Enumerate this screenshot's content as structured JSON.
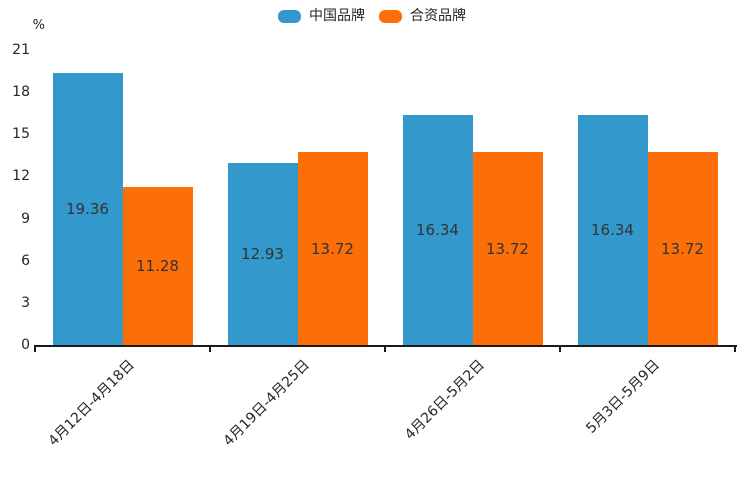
{
  "chart_data": {
    "type": "bar",
    "title": "",
    "xlabel": "",
    "ylabel": "%",
    "ylim": [
      0,
      21
    ],
    "yticks": [
      0,
      3,
      6,
      9,
      12,
      15,
      18,
      21
    ],
    "grid": false,
    "legend_position": "top-center",
    "value_labels": "inside-center",
    "categories": [
      "4月12日-4月18日",
      "4月19日-4月25日",
      "4月26日-5月2日",
      "5月3日-5月9日"
    ],
    "series": [
      {
        "name": "中国品牌",
        "key": "china-brand",
        "color": "#3398cc",
        "values": [
          19.36,
          12.93,
          16.34,
          16.34
        ]
      },
      {
        "name": "合资品牌",
        "key": "joint-venture-brand",
        "color": "#fc6e08",
        "values": [
          11.28,
          13.72,
          13.72,
          13.72
        ]
      }
    ],
    "colors": {
      "axis": "#1a1a1a",
      "tick_text": "#262626",
      "value_label_text": "#333333"
    }
  }
}
